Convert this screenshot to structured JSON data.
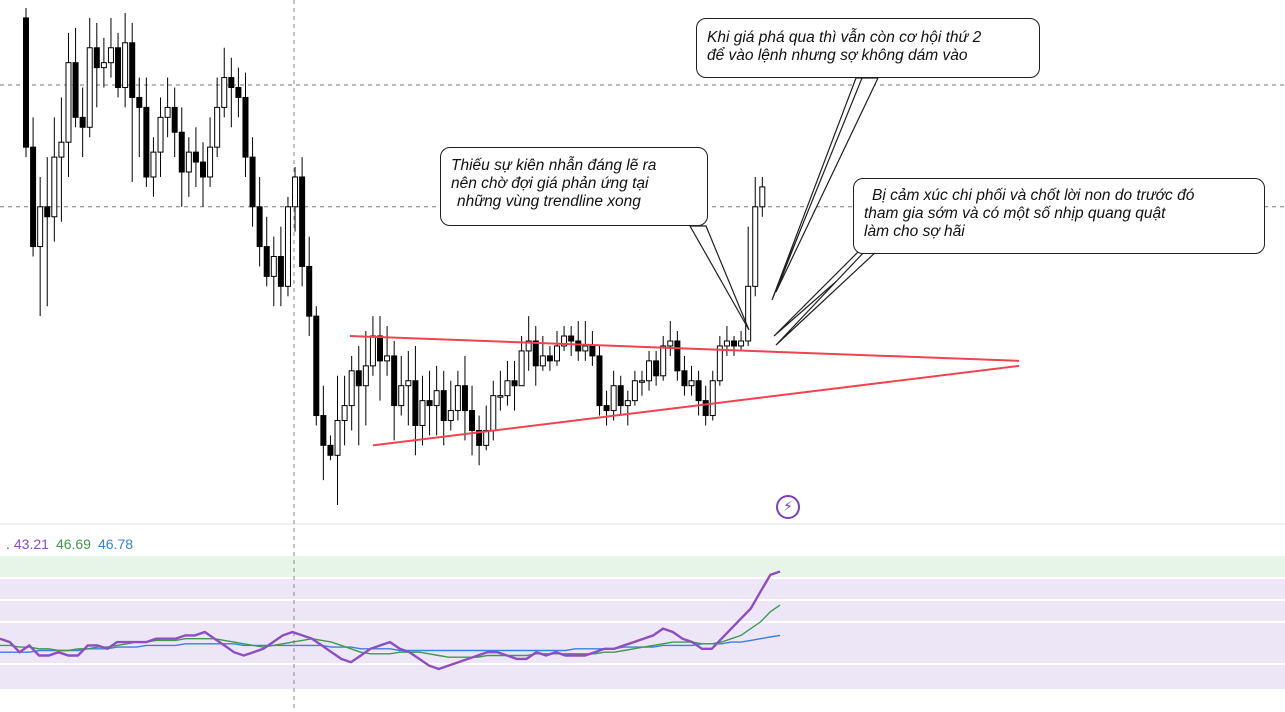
{
  "colors": {
    "bull": "#ffffff",
    "bear": "#000000",
    "trendline": "#f0434f",
    "rsi": "#8d4ec4",
    "rsi_ma": "#3f9a4c",
    "rsi_long_ma": "#3b7fe0",
    "callout_border": "#1f1f1f"
  },
  "annotations": [
    {
      "id": "note-second-chance",
      "lines": [
        "Khi giá phá qua thì vẫn còn cơ hội thứ 2",
        "để vào lệnh nhưng sợ không dám vào"
      ]
    },
    {
      "id": "note-impatience",
      "lines": [
        "Thiếu sự kiên nhẫn đáng lẽ ra",
        "nên chờ đợi giá phản ứng tại",
        "những vùng trendline xong"
      ]
    },
    {
      "id": "note-emotion",
      "lines": [
        "Bị cảm xúc chi phối  và chốt lời non do trước đó",
        "tham gia sớm và có một số nhịp quang quật",
        "làm cho sợ hãi"
      ]
    }
  ],
  "rsi_legend": {
    "prefix": ".",
    "rsi_value": "43.21",
    "ma_value": "46.69",
    "long_ma_value": "46.78"
  },
  "icons": {
    "flash": "flash-icon"
  },
  "chart_data": {
    "type": "candlestick",
    "title": "",
    "x_index_range": [
      0,
      105
    ],
    "price_range": [
      1.0,
      0.0
    ],
    "candles": [
      [
        0.98,
        0.72,
        1.0,
        0.7
      ],
      [
        0.72,
        0.52,
        0.78,
        0.5
      ],
      [
        0.52,
        0.6,
        0.66,
        0.38
      ],
      [
        0.6,
        0.58,
        0.7,
        0.4
      ],
      [
        0.58,
        0.7,
        0.78,
        0.53
      ],
      [
        0.7,
        0.73,
        0.82,
        0.57
      ],
      [
        0.73,
        0.89,
        0.95,
        0.66
      ],
      [
        0.89,
        0.78,
        0.96,
        0.76
      ],
      [
        0.78,
        0.76,
        0.84,
        0.7
      ],
      [
        0.76,
        0.92,
        0.98,
        0.74
      ],
      [
        0.92,
        0.88,
        0.97,
        0.8
      ],
      [
        0.88,
        0.89,
        0.94,
        0.84
      ],
      [
        0.89,
        0.92,
        0.98,
        0.86
      ],
      [
        0.92,
        0.84,
        0.95,
        0.82
      ],
      [
        0.84,
        0.93,
        0.99,
        0.8
      ],
      [
        0.93,
        0.82,
        0.97,
        0.65
      ],
      [
        0.82,
        0.8,
        0.86,
        0.7
      ],
      [
        0.8,
        0.66,
        0.86,
        0.64
      ],
      [
        0.66,
        0.71,
        0.74,
        0.62
      ],
      [
        0.71,
        0.78,
        0.82,
        0.66
      ],
      [
        0.78,
        0.8,
        0.86,
        0.74
      ],
      [
        0.8,
        0.75,
        0.84,
        0.7
      ],
      [
        0.75,
        0.67,
        0.8,
        0.6
      ],
      [
        0.67,
        0.71,
        0.74,
        0.62
      ],
      [
        0.71,
        0.69,
        0.76,
        0.64
      ],
      [
        0.69,
        0.66,
        0.73,
        0.6
      ],
      [
        0.66,
        0.72,
        0.78,
        0.64
      ],
      [
        0.72,
        0.8,
        0.86,
        0.7
      ],
      [
        0.8,
        0.86,
        0.92,
        0.78
      ],
      [
        0.86,
        0.84,
        0.9,
        0.76
      ],
      [
        0.84,
        0.82,
        0.88,
        0.78
      ],
      [
        0.82,
        0.7,
        0.87,
        0.66
      ],
      [
        0.7,
        0.6,
        0.74,
        0.56
      ],
      [
        0.6,
        0.52,
        0.66,
        0.48
      ],
      [
        0.52,
        0.46,
        0.58,
        0.44
      ],
      [
        0.46,
        0.5,
        0.54,
        0.4
      ],
      [
        0.5,
        0.44,
        0.56,
        0.4
      ],
      [
        0.44,
        0.6,
        0.62,
        0.42
      ],
      [
        0.6,
        0.66,
        0.68,
        0.55
      ],
      [
        0.66,
        0.48,
        0.7,
        0.44
      ],
      [
        0.48,
        0.38,
        0.54,
        0.34
      ],
      [
        0.38,
        0.18,
        0.4,
        0.16
      ],
      [
        0.18,
        0.12,
        0.24,
        0.05
      ],
      [
        0.12,
        0.1,
        0.14,
        0.09
      ],
      [
        0.1,
        0.17,
        0.26,
        0.0
      ],
      [
        0.17,
        0.2,
        0.26,
        0.12
      ],
      [
        0.2,
        0.27,
        0.3,
        0.15
      ],
      [
        0.27,
        0.24,
        0.32,
        0.12
      ],
      [
        0.24,
        0.28,
        0.35,
        0.16
      ],
      [
        0.28,
        0.34,
        0.38,
        0.26
      ],
      [
        0.34,
        0.29,
        0.38,
        0.21
      ],
      [
        0.29,
        0.3,
        0.36,
        0.26
      ],
      [
        0.3,
        0.2,
        0.33,
        0.13
      ],
      [
        0.2,
        0.24,
        0.3,
        0.18
      ],
      [
        0.24,
        0.25,
        0.31,
        0.16
      ],
      [
        0.25,
        0.16,
        0.32,
        0.1
      ],
      [
        0.16,
        0.21,
        0.26,
        0.12
      ],
      [
        0.21,
        0.2,
        0.27,
        0.14
      ],
      [
        0.2,
        0.23,
        0.28,
        0.14
      ],
      [
        0.23,
        0.17,
        0.27,
        0.12
      ],
      [
        0.17,
        0.19,
        0.25,
        0.15
      ],
      [
        0.19,
        0.24,
        0.27,
        0.17
      ],
      [
        0.24,
        0.19,
        0.3,
        0.13
      ],
      [
        0.19,
        0.15,
        0.24,
        0.1
      ],
      [
        0.15,
        0.12,
        0.18,
        0.08
      ],
      [
        0.12,
        0.15,
        0.2,
        0.11
      ],
      [
        0.15,
        0.22,
        0.25,
        0.13
      ],
      [
        0.22,
        0.22,
        0.27,
        0.19
      ],
      [
        0.22,
        0.25,
        0.29,
        0.2
      ],
      [
        0.25,
        0.24,
        0.29,
        0.19
      ],
      [
        0.24,
        0.31,
        0.34,
        0.24
      ],
      [
        0.31,
        0.33,
        0.38,
        0.27
      ],
      [
        0.33,
        0.28,
        0.36,
        0.24
      ],
      [
        0.28,
        0.3,
        0.34,
        0.27
      ],
      [
        0.3,
        0.29,
        0.32,
        0.27
      ],
      [
        0.29,
        0.32,
        0.35,
        0.28
      ],
      [
        0.32,
        0.34,
        0.36,
        0.31
      ],
      [
        0.34,
        0.33,
        0.36,
        0.3
      ],
      [
        0.33,
        0.31,
        0.37,
        0.29
      ],
      [
        0.31,
        0.32,
        0.37,
        0.29
      ],
      [
        0.32,
        0.3,
        0.35,
        0.28
      ],
      [
        0.3,
        0.2,
        0.32,
        0.18
      ],
      [
        0.2,
        0.19,
        0.23,
        0.16
      ],
      [
        0.19,
        0.24,
        0.27,
        0.17
      ],
      [
        0.24,
        0.2,
        0.26,
        0.18
      ],
      [
        0.2,
        0.21,
        0.23,
        0.16
      ],
      [
        0.21,
        0.25,
        0.27,
        0.2
      ],
      [
        0.25,
        0.25,
        0.27,
        0.22
      ],
      [
        0.25,
        0.29,
        0.31,
        0.23
      ],
      [
        0.29,
        0.26,
        0.31,
        0.24
      ],
      [
        0.26,
        0.32,
        0.34,
        0.25
      ],
      [
        0.32,
        0.33,
        0.37,
        0.3
      ],
      [
        0.33,
        0.27,
        0.35,
        0.25
      ],
      [
        0.27,
        0.24,
        0.3,
        0.22
      ],
      [
        0.24,
        0.25,
        0.28,
        0.22
      ],
      [
        0.25,
        0.21,
        0.27,
        0.18
      ],
      [
        0.21,
        0.18,
        0.24,
        0.16
      ],
      [
        0.18,
        0.25,
        0.27,
        0.17
      ],
      [
        0.25,
        0.32,
        0.34,
        0.24
      ],
      [
        0.32,
        0.33,
        0.36,
        0.3
      ],
      [
        0.33,
        0.32,
        0.34,
        0.3
      ],
      [
        0.32,
        0.33,
        0.35,
        0.31
      ],
      [
        0.33,
        0.44,
        0.56,
        0.32
      ],
      [
        0.44,
        0.6,
        0.66,
        0.42
      ],
      [
        0.6,
        0.64,
        0.66,
        0.58
      ]
    ],
    "horizontal_lines": [
      0.845,
      0.6
    ],
    "vertical_line_index": 49,
    "trendlines": [
      {
        "name": "upper",
        "from": [
          58,
          0.34
        ],
        "to": [
          169,
          0.29
        ]
      },
      {
        "name": "lower",
        "from": [
          62,
          0.12
        ],
        "to": [
          169,
          0.28
        ]
      }
    ],
    "rsi_panel": {
      "range": [
        100,
        0
      ],
      "bands": [
        70,
        50,
        30
      ],
      "rsi": [
        46,
        44,
        38,
        42,
        36,
        36,
        38,
        36,
        36,
        42,
        42,
        40,
        44,
        44,
        44,
        44,
        46,
        46,
        46,
        48,
        48,
        50,
        46,
        42,
        38,
        36,
        38,
        40,
        44,
        48,
        50,
        48,
        46,
        42,
        38,
        34,
        32,
        36,
        40,
        42,
        44,
        40,
        38,
        34,
        30,
        28,
        30,
        32,
        34,
        36,
        38,
        38,
        36,
        34,
        34,
        38,
        36,
        38,
        36,
        36,
        36,
        38,
        40,
        40,
        42,
        44,
        46,
        48,
        52,
        50,
        46,
        44,
        40,
        40,
        46,
        52,
        58,
        64,
        74,
        84,
        86
      ],
      "rsi_ma": [
        42,
        42,
        41,
        41,
        40,
        40,
        39,
        39,
        40,
        40,
        41,
        41,
        42,
        43,
        44,
        44,
        45,
        45,
        45,
        46,
        46,
        46,
        46,
        45,
        44,
        43,
        42,
        41,
        42,
        43,
        44,
        45,
        46,
        45,
        44,
        42,
        40,
        38,
        37,
        37,
        37,
        38,
        38,
        38,
        37,
        36,
        35,
        35,
        35,
        35,
        36,
        36,
        36,
        36,
        36,
        37,
        37,
        37,
        37,
        37,
        37,
        37,
        38,
        38,
        39,
        40,
        41,
        42,
        43,
        44,
        44,
        44,
        43,
        43,
        44,
        46,
        48,
        52,
        56,
        62,
        66
      ],
      "rsi_long_ma": [
        38,
        38,
        38,
        38,
        39,
        39,
        39,
        39,
        39,
        40,
        40,
        40,
        41,
        41,
        41,
        42,
        42,
        42,
        42,
        43,
        43,
        43,
        43,
        43,
        43,
        42,
        42,
        42,
        42,
        42,
        42,
        42,
        42,
        42,
        41,
        41,
        41,
        40,
        40,
        40,
        40,
        39,
        39,
        39,
        39,
        39,
        39,
        39,
        39,
        39,
        39,
        39,
        39,
        39,
        39,
        39,
        39,
        39,
        39,
        40,
        40,
        40,
        40,
        40,
        41,
        41,
        41,
        41,
        42,
        42,
        42,
        42,
        43,
        43,
        43,
        44,
        44,
        45,
        46,
        47,
        48
      ]
    }
  }
}
